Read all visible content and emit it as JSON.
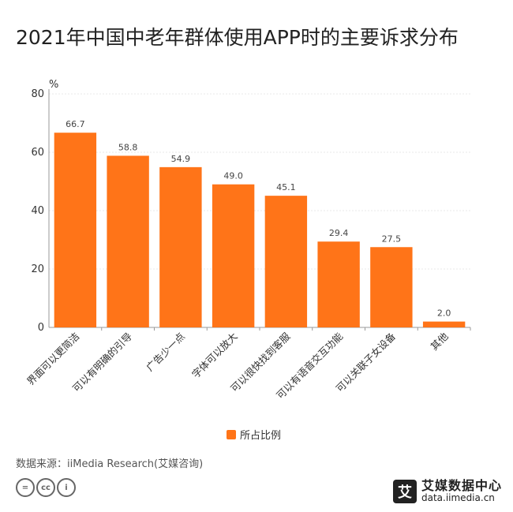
{
  "title": "2021年中国中老年群体使用APP时的主要诉求分布",
  "source": "数据来源：iiMedia Research(艾媒咨询)",
  "brand": {
    "name": "艾媒数据中心",
    "url": "data.iimedia.cn",
    "logo_char": "艾"
  },
  "license_icons": [
    "=",
    "cc",
    "i"
  ],
  "colors": {
    "bar": "#ff7418",
    "grid": "#e8e8e8",
    "axis": "#999999"
  },
  "chart_data": {
    "type": "bar",
    "title": "2021年中国中老年群体使用APP时的主要诉求分布",
    "ylabel": "%",
    "xlabel": "",
    "ylim": [
      0,
      80
    ],
    "yticks": [
      0,
      20,
      40,
      60,
      80
    ],
    "grid": true,
    "legend_position": "bottom",
    "categories": [
      "界面可以更简洁",
      "可以有明确的引导",
      "广告少一点",
      "字体可以放大",
      "可以很快找到客服",
      "可以有语音交互功能",
      "可以关联子女设备",
      "其他"
    ],
    "series": [
      {
        "name": "所占比例",
        "values": [
          66.7,
          58.8,
          54.9,
          49.0,
          45.1,
          29.4,
          27.5,
          2.0
        ]
      }
    ],
    "value_labels": [
      "66.7",
      "58.8",
      "54.9",
      "49.0",
      "45.1",
      "29.4",
      "27.5",
      "2.0"
    ]
  }
}
